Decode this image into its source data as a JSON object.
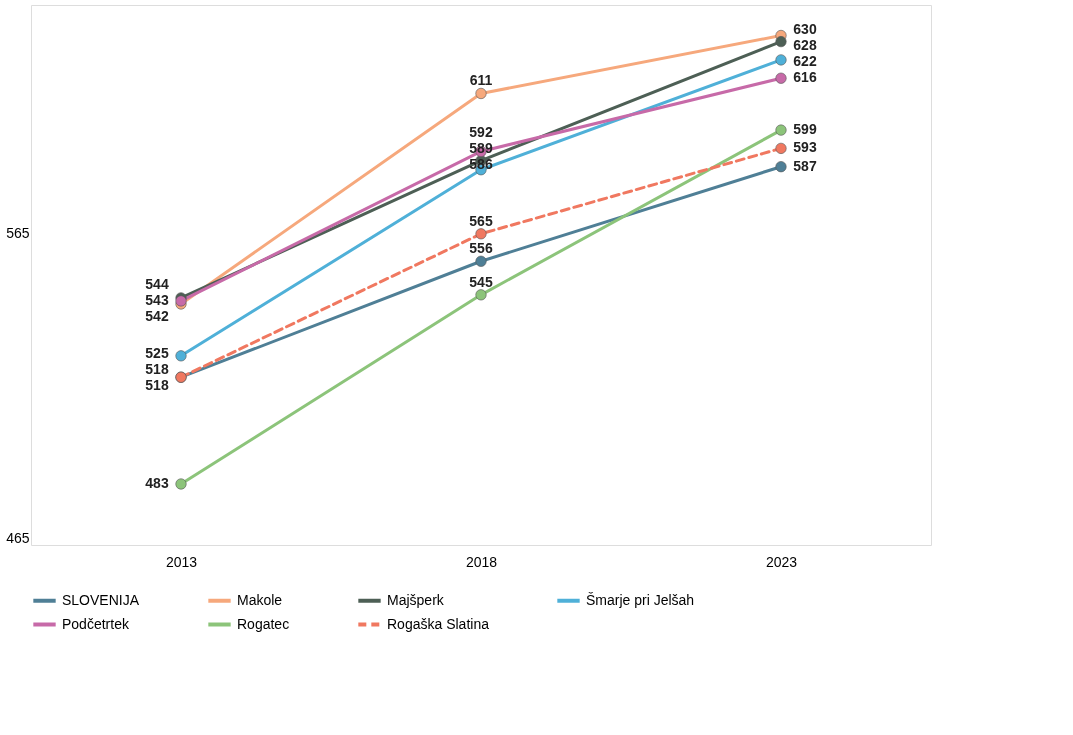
{
  "chart_data": {
    "type": "line",
    "categories": [
      "2013",
      "2018",
      "2023"
    ],
    "ylim": [
      463,
      640
    ],
    "yticks": [
      465,
      565
    ],
    "grid": false,
    "legend": "bottom",
    "marker": "circle",
    "data_labels": true,
    "series": [
      {
        "name": "SLOVENIJA",
        "color": "#4f7f96",
        "values": [
          518,
          556,
          587
        ]
      },
      {
        "name": "Makole",
        "color": "#f6a87c",
        "values": [
          542,
          611,
          630
        ]
      },
      {
        "name": "Majšperk",
        "color": "#4d5f55",
        "values": [
          544,
          589,
          628
        ]
      },
      {
        "name": "Šmarje pri Jelšah",
        "color": "#4fb0d8",
        "values": [
          525,
          586,
          622
        ]
      },
      {
        "name": "Podčetrtek",
        "color": "#c76aa8",
        "values": [
          543,
          592,
          616
        ]
      },
      {
        "name": "Rogatec",
        "color": "#8cc47a",
        "values": [
          483,
          545,
          599
        ]
      },
      {
        "name": "Rogaška Slatina",
        "color": "#f07860",
        "line_style": "dashed",
        "values": [
          518,
          565,
          593
        ]
      }
    ]
  }
}
